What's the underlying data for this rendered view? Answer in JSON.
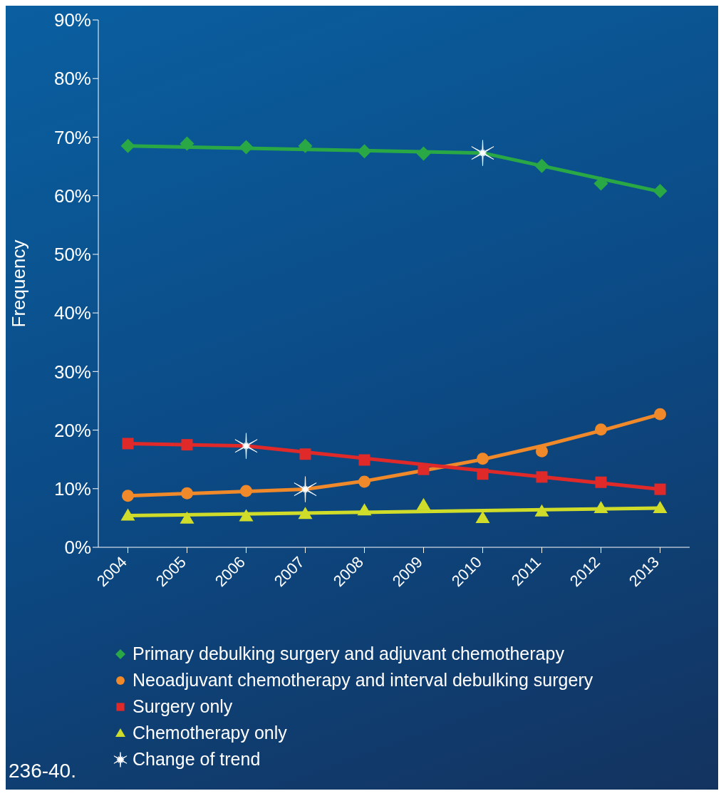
{
  "chart_data": {
    "type": "scatter",
    "ylabel": "Frequency",
    "categories": [
      "2004",
      "2005",
      "2006",
      "2007",
      "2008",
      "2009",
      "2010",
      "2011",
      "2012",
      "2013"
    ],
    "ylim": [
      0,
      90
    ],
    "yticks": [
      {
        "value": 0,
        "label": "0%"
      },
      {
        "value": 10,
        "label": "10%"
      },
      {
        "value": 20,
        "label": "20%"
      },
      {
        "value": 30,
        "label": "30%"
      },
      {
        "value": 40,
        "label": "40%"
      },
      {
        "value": 50,
        "label": "50%"
      },
      {
        "value": 60,
        "label": "60%"
      },
      {
        "value": 70,
        "label": "70%"
      },
      {
        "value": 80,
        "label": "80%"
      },
      {
        "value": 90,
        "label": "90%"
      }
    ],
    "legend": "bottom",
    "annotations": [
      "236-40."
    ],
    "series": [
      {
        "type": "line",
        "color": "#2aa845",
        "marker": "none",
        "values": [
          68.5,
          null,
          null,
          null,
          null,
          null,
          67.3,
          null,
          null,
          60.7
        ]
      },
      {
        "type": "line",
        "color": "#f0892a",
        "marker": "none",
        "values": [
          8.8,
          null,
          null,
          9.9,
          11.3,
          13.1,
          15.0,
          17.3,
          19.9,
          22.7
        ]
      },
      {
        "type": "line",
        "color": "#e02a2a",
        "marker": "none",
        "values": [
          17.7,
          null,
          17.3,
          null,
          null,
          null,
          null,
          null,
          null,
          9.9
        ]
      },
      {
        "type": "line",
        "color": "#cfdc2a",
        "marker": "none",
        "values": [
          5.4,
          null,
          null,
          null,
          null,
          null,
          null,
          null,
          null,
          6.7
        ]
      },
      {
        "name": "Primary debulking surgery and adjuvant chemotherapy",
        "color": "#2aa845",
        "marker": "diamond",
        "values": [
          68.5,
          68.9,
          68.3,
          68.5,
          67.6,
          67.2,
          null,
          65.1,
          62.1,
          60.8
        ]
      },
      {
        "name": "Neoadjuvant chemotherapy and interval debulking surgery",
        "color": "#f0892a",
        "marker": "circle",
        "values": [
          8.8,
          9.2,
          9.6,
          null,
          11.2,
          null,
          15.1,
          16.4,
          20.1,
          22.7
        ]
      },
      {
        "name": "Surgery only",
        "color": "#e02a2a",
        "marker": "square",
        "values": [
          17.7,
          17.5,
          null,
          15.9,
          14.9,
          13.3,
          12.5,
          12.0,
          11.1,
          9.9
        ]
      },
      {
        "name": "Chemotherapy only",
        "color": "#cfdc2a",
        "marker": "triangle",
        "values": [
          5.4,
          4.9,
          5.3,
          5.7,
          6.3,
          7.2,
          5.0,
          6.1,
          6.7,
          6.7
        ]
      },
      {
        "name": "Change of trend",
        "color": "#ffffff",
        "marker": "cross",
        "values": [
          null,
          null,
          17.3,
          9.9,
          null,
          null,
          67.3,
          null,
          null,
          null
        ]
      }
    ]
  }
}
